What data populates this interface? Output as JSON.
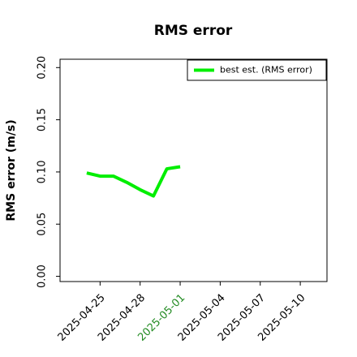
{
  "chart_data": {
    "type": "line",
    "title": "RMS error",
    "ylabel": "RMS error (m/s)",
    "x": [
      "2025-04-24",
      "2025-04-25",
      "2025-04-26",
      "2025-04-27",
      "2025-04-28",
      "2025-04-29",
      "2025-04-30",
      "2025-05-01"
    ],
    "series": [
      {
        "name": "best est. (RMS error)",
        "color": "#00ee00",
        "values": [
          0.099,
          0.096,
          0.096,
          0.09,
          0.083,
          0.077,
          0.103,
          0.105
        ]
      }
    ],
    "xlim": [
      "2025-04-22",
      "2025-05-12"
    ],
    "xticks": [
      "2025-04-25",
      "2025-04-28",
      "2025-05-01",
      "2025-05-04",
      "2025-05-07",
      "2025-05-10"
    ],
    "xtick_colors": [
      "#000000",
      "#000000",
      "#228b22",
      "#000000",
      "#000000",
      "#000000"
    ],
    "ylim": [
      -0.005,
      0.208
    ],
    "yticks": [
      {
        "value": 0,
        "label": "0.00"
      },
      {
        "value": 0.05,
        "label": "0.05"
      },
      {
        "value": 0.1,
        "label": "0.10"
      },
      {
        "value": 0.15,
        "label": "0.15"
      },
      {
        "value": 0.2,
        "label": "0.20"
      }
    ],
    "legend": "upper right"
  }
}
